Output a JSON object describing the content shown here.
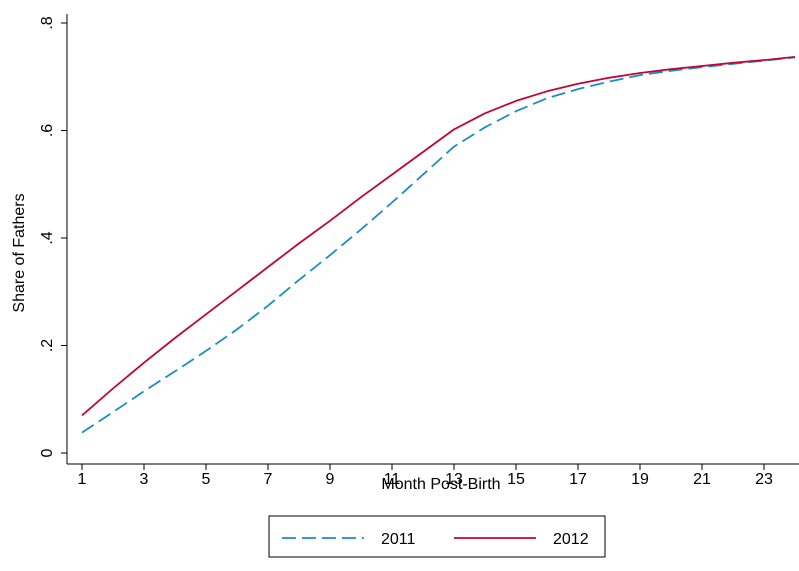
{
  "chart_data": {
    "type": "line",
    "title": "",
    "xlabel": "Month Post-Birth",
    "ylabel": "Share of Fathers",
    "xlim": [
      1,
      24
    ],
    "ylim": [
      0,
      0.8
    ],
    "x_ticks": [
      1,
      3,
      5,
      7,
      9,
      11,
      13,
      15,
      17,
      19,
      21,
      23
    ],
    "y_ticks": [
      0,
      0.2,
      0.4,
      0.6,
      0.8
    ],
    "y_tick_labels": [
      "0",
      ".2",
      ".4",
      ".6",
      ".8"
    ],
    "grid": false,
    "legend_position": "bottom",
    "x": [
      1,
      2,
      3,
      4,
      5,
      6,
      7,
      8,
      9,
      10,
      11,
      12,
      13,
      14,
      15,
      16,
      17,
      18,
      19,
      20,
      21,
      22,
      23,
      24
    ],
    "series": [
      {
        "name": "2011",
        "color": "#1a8fbf",
        "dash": "dashed",
        "values": [
          0.038,
          0.076,
          0.115,
          0.152,
          0.19,
          0.23,
          0.274,
          0.322,
          0.368,
          0.416,
          0.466,
          0.518,
          0.57,
          0.606,
          0.636,
          0.66,
          0.677,
          0.691,
          0.703,
          0.711,
          0.718,
          0.724,
          0.73,
          0.736
        ]
      },
      {
        "name": "2012",
        "color": "#c10534",
        "dash": "solid",
        "values": [
          0.07,
          0.12,
          0.168,
          0.214,
          0.258,
          0.302,
          0.346,
          0.39,
          0.432,
          0.476,
          0.518,
          0.56,
          0.602,
          0.632,
          0.655,
          0.673,
          0.687,
          0.698,
          0.707,
          0.714,
          0.72,
          0.726,
          0.731,
          0.737
        ]
      }
    ]
  }
}
